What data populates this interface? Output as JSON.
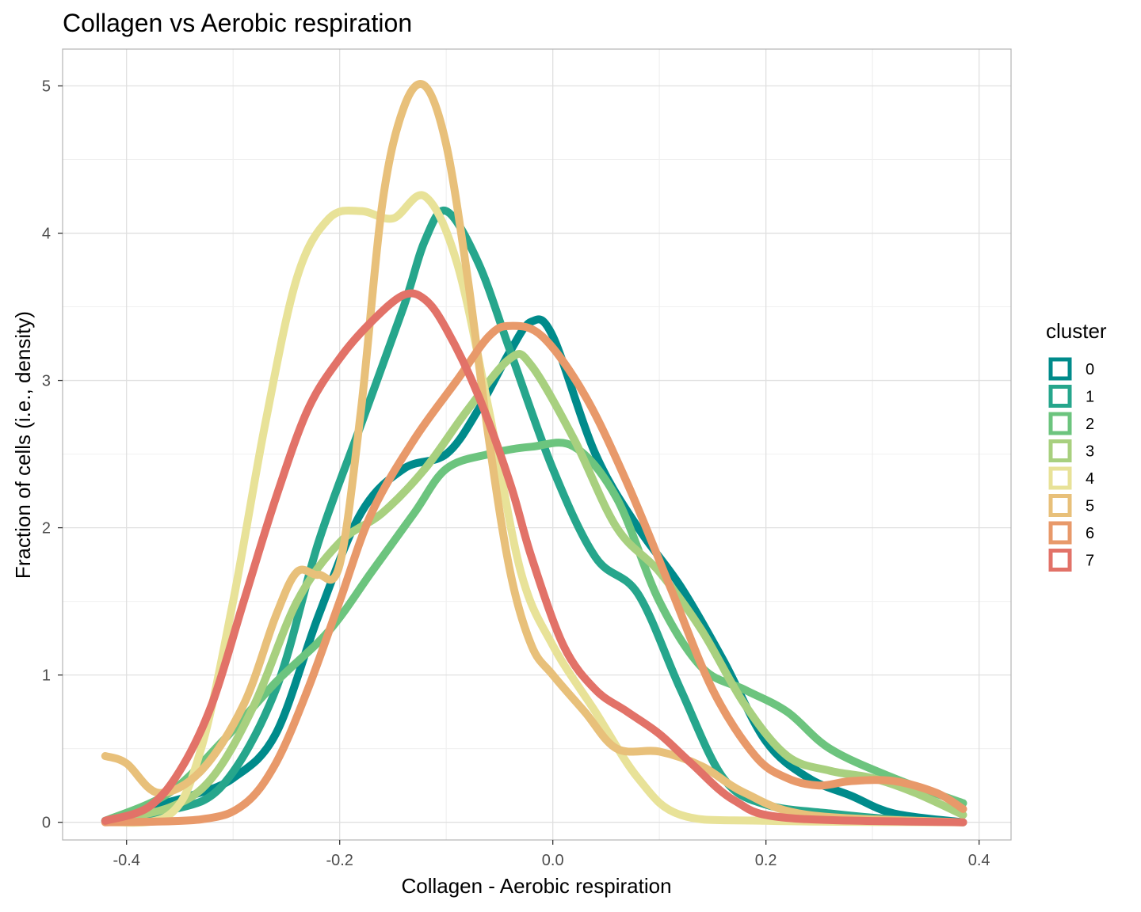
{
  "chart_data": {
    "type": "line",
    "title": "Collagen vs Aerobic respiration",
    "xlabel": "Collagen - Aerobic respiration",
    "ylabel": "Fraction of cells (i.e., density)",
    "xlim": [
      -0.46,
      0.43
    ],
    "ylim": [
      -0.12,
      5.25
    ],
    "x_ticks": [
      -0.4,
      -0.2,
      0.0,
      0.2,
      0.4
    ],
    "x_tick_labels": [
      "-0.4",
      "-0.2",
      "0.0",
      "0.2",
      "0.4"
    ],
    "y_ticks": [
      0,
      1,
      2,
      3,
      4,
      5
    ],
    "y_tick_labels": [
      "0",
      "1",
      "2",
      "3",
      "4",
      "5"
    ],
    "grid": true,
    "legend": {
      "title": "cluster",
      "position": "right"
    },
    "series": [
      {
        "name": "0",
        "color": "#008b8b",
        "points": [
          [
            -0.42,
            0.01
          ],
          [
            -0.38,
            0.1
          ],
          [
            -0.34,
            0.18
          ],
          [
            -0.3,
            0.3
          ],
          [
            -0.26,
            0.6
          ],
          [
            -0.22,
            1.4
          ],
          [
            -0.18,
            2.1
          ],
          [
            -0.14,
            2.4
          ],
          [
            -0.1,
            2.5
          ],
          [
            -0.07,
            2.8
          ],
          [
            -0.04,
            3.2
          ],
          [
            -0.02,
            3.4
          ],
          [
            0.0,
            3.3
          ],
          [
            0.04,
            2.5
          ],
          [
            0.08,
            2.0
          ],
          [
            0.12,
            1.6
          ],
          [
            0.16,
            1.1
          ],
          [
            0.2,
            0.55
          ],
          [
            0.24,
            0.3
          ],
          [
            0.28,
            0.18
          ],
          [
            0.32,
            0.06
          ],
          [
            0.385,
            0.0
          ]
        ]
      },
      {
        "name": "1",
        "color": "#26a68c",
        "points": [
          [
            -0.42,
            0.01
          ],
          [
            -0.36,
            0.08
          ],
          [
            -0.31,
            0.25
          ],
          [
            -0.26,
            0.9
          ],
          [
            -0.22,
            1.9
          ],
          [
            -0.18,
            2.7
          ],
          [
            -0.14,
            3.5
          ],
          [
            -0.12,
            3.95
          ],
          [
            -0.1,
            4.15
          ],
          [
            -0.07,
            3.8
          ],
          [
            -0.04,
            3.2
          ],
          [
            0.0,
            2.4
          ],
          [
            0.04,
            1.8
          ],
          [
            0.08,
            1.55
          ],
          [
            0.12,
            0.9
          ],
          [
            0.16,
            0.3
          ],
          [
            0.2,
            0.12
          ],
          [
            0.26,
            0.06
          ],
          [
            0.32,
            0.02
          ],
          [
            0.385,
            0.0
          ]
        ]
      },
      {
        "name": "2",
        "color": "#6cc47e",
        "points": [
          [
            -0.42,
            0.01
          ],
          [
            -0.36,
            0.2
          ],
          [
            -0.31,
            0.55
          ],
          [
            -0.26,
            0.95
          ],
          [
            -0.21,
            1.3
          ],
          [
            -0.17,
            1.7
          ],
          [
            -0.13,
            2.1
          ],
          [
            -0.1,
            2.4
          ],
          [
            -0.06,
            2.5
          ],
          [
            -0.02,
            2.55
          ],
          [
            0.02,
            2.55
          ],
          [
            0.06,
            2.2
          ],
          [
            0.1,
            1.5
          ],
          [
            0.14,
            1.05
          ],
          [
            0.18,
            0.9
          ],
          [
            0.22,
            0.75
          ],
          [
            0.26,
            0.5
          ],
          [
            0.32,
            0.3
          ],
          [
            0.385,
            0.13
          ]
        ]
      },
      {
        "name": "3",
        "color": "#a8d07f",
        "points": [
          [
            -0.42,
            0.01
          ],
          [
            -0.36,
            0.1
          ],
          [
            -0.32,
            0.3
          ],
          [
            -0.28,
            0.8
          ],
          [
            -0.24,
            1.5
          ],
          [
            -0.2,
            1.9
          ],
          [
            -0.16,
            2.1
          ],
          [
            -0.12,
            2.4
          ],
          [
            -0.08,
            2.8
          ],
          [
            -0.04,
            3.15
          ],
          [
            -0.02,
            3.1
          ],
          [
            0.02,
            2.6
          ],
          [
            0.06,
            2.0
          ],
          [
            0.1,
            1.7
          ],
          [
            0.14,
            1.3
          ],
          [
            0.18,
            0.8
          ],
          [
            0.22,
            0.45
          ],
          [
            0.26,
            0.35
          ],
          [
            0.3,
            0.3
          ],
          [
            0.34,
            0.2
          ],
          [
            0.385,
            0.05
          ]
        ]
      },
      {
        "name": "4",
        "color": "#e8e298",
        "points": [
          [
            -0.42,
            0.0
          ],
          [
            -0.36,
            0.05
          ],
          [
            -0.33,
            0.5
          ],
          [
            -0.3,
            1.5
          ],
          [
            -0.27,
            2.7
          ],
          [
            -0.24,
            3.7
          ],
          [
            -0.21,
            4.1
          ],
          [
            -0.18,
            4.15
          ],
          [
            -0.15,
            4.1
          ],
          [
            -0.12,
            4.25
          ],
          [
            -0.09,
            3.8
          ],
          [
            -0.06,
            2.8
          ],
          [
            -0.03,
            1.7
          ],
          [
            0.0,
            1.2
          ],
          [
            0.04,
            0.75
          ],
          [
            0.08,
            0.3
          ],
          [
            0.12,
            0.05
          ],
          [
            0.2,
            0.01
          ],
          [
            0.385,
            0.0
          ]
        ]
      },
      {
        "name": "5",
        "color": "#e8c07a",
        "points": [
          [
            -0.42,
            0.45
          ],
          [
            -0.4,
            0.4
          ],
          [
            -0.37,
            0.2
          ],
          [
            -0.33,
            0.35
          ],
          [
            -0.29,
            0.8
          ],
          [
            -0.26,
            1.4
          ],
          [
            -0.24,
            1.7
          ],
          [
            -0.22,
            1.68
          ],
          [
            -0.2,
            1.75
          ],
          [
            -0.18,
            2.8
          ],
          [
            -0.16,
            4.2
          ],
          [
            -0.14,
            4.85
          ],
          [
            -0.12,
            5.0
          ],
          [
            -0.1,
            4.6
          ],
          [
            -0.08,
            3.7
          ],
          [
            -0.06,
            2.6
          ],
          [
            -0.04,
            1.7
          ],
          [
            -0.02,
            1.2
          ],
          [
            0.0,
            1.0
          ],
          [
            0.03,
            0.75
          ],
          [
            0.06,
            0.5
          ],
          [
            0.1,
            0.48
          ],
          [
            0.14,
            0.38
          ],
          [
            0.18,
            0.2
          ],
          [
            0.24,
            0.05
          ],
          [
            0.385,
            0.0
          ]
        ]
      },
      {
        "name": "6",
        "color": "#e8996a",
        "points": [
          [
            -0.42,
            0.0
          ],
          [
            -0.33,
            0.02
          ],
          [
            -0.29,
            0.12
          ],
          [
            -0.26,
            0.4
          ],
          [
            -0.23,
            0.9
          ],
          [
            -0.2,
            1.5
          ],
          [
            -0.17,
            2.1
          ],
          [
            -0.13,
            2.6
          ],
          [
            -0.09,
            3.0
          ],
          [
            -0.06,
            3.3
          ],
          [
            -0.04,
            3.37
          ],
          [
            -0.01,
            3.3
          ],
          [
            0.03,
            2.9
          ],
          [
            0.07,
            2.3
          ],
          [
            0.11,
            1.6
          ],
          [
            0.15,
            0.9
          ],
          [
            0.19,
            0.45
          ],
          [
            0.22,
            0.3
          ],
          [
            0.25,
            0.25
          ],
          [
            0.28,
            0.28
          ],
          [
            0.32,
            0.28
          ],
          [
            0.36,
            0.2
          ],
          [
            0.385,
            0.09
          ]
        ]
      },
      {
        "name": "7",
        "color": "#e27268",
        "points": [
          [
            -0.42,
            0.01
          ],
          [
            -0.38,
            0.1
          ],
          [
            -0.35,
            0.35
          ],
          [
            -0.32,
            0.8
          ],
          [
            -0.29,
            1.5
          ],
          [
            -0.26,
            2.2
          ],
          [
            -0.23,
            2.8
          ],
          [
            -0.2,
            3.15
          ],
          [
            -0.17,
            3.4
          ],
          [
            -0.14,
            3.58
          ],
          [
            -0.12,
            3.55
          ],
          [
            -0.1,
            3.35
          ],
          [
            -0.07,
            2.9
          ],
          [
            -0.04,
            2.3
          ],
          [
            -0.02,
            1.8
          ],
          [
            0.01,
            1.2
          ],
          [
            0.04,
            0.9
          ],
          [
            0.07,
            0.75
          ],
          [
            0.1,
            0.6
          ],
          [
            0.13,
            0.4
          ],
          [
            0.17,
            0.15
          ],
          [
            0.22,
            0.03
          ],
          [
            0.385,
            0.0
          ]
        ]
      }
    ]
  }
}
